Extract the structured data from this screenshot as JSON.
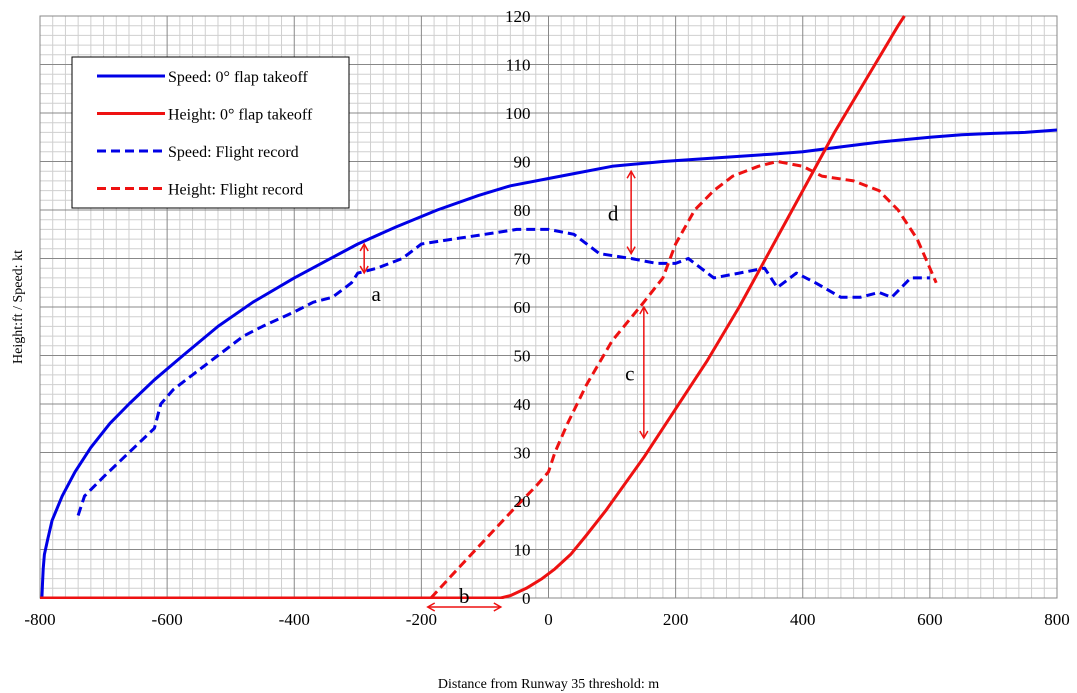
{
  "chart_data": {
    "type": "line",
    "xlabel": "Distance from Runway 35 threshold: m",
    "ylabel": "Height:ft / Speed: kt",
    "xlim": [
      -800,
      800
    ],
    "ylim": [
      0,
      120
    ],
    "x_ticks": [
      -800,
      -600,
      -400,
      -200,
      0,
      200,
      400,
      600,
      800
    ],
    "x_tick_labels": [
      "-800",
      "-600",
      "-400",
      "-200",
      "0",
      "200",
      "400",
      "600",
      "800"
    ],
    "y_ticks": [
      0,
      10,
      20,
      30,
      40,
      50,
      60,
      70,
      80,
      90,
      100,
      110,
      120
    ],
    "y_tick_labels": [
      "0",
      "10",
      "20",
      "30",
      "40",
      "50",
      "60",
      "70",
      "80",
      "90",
      "100",
      "110",
      "120"
    ],
    "grid": true,
    "legend_position": "top-left",
    "series": [
      {
        "name": "Speed: 0° flap takeoff",
        "color": "#0000e6",
        "dash": "solid",
        "points": [
          [
            -797,
            0
          ],
          [
            -796,
            3
          ],
          [
            -795,
            6
          ],
          [
            -793,
            9
          ],
          [
            -788,
            12
          ],
          [
            -781,
            16
          ],
          [
            -765,
            21
          ],
          [
            -745,
            26
          ],
          [
            -720,
            31
          ],
          [
            -690,
            36
          ],
          [
            -660,
            40
          ],
          [
            -620,
            45
          ],
          [
            -575,
            50
          ],
          [
            -520,
            56
          ],
          [
            -465,
            61
          ],
          [
            -400,
            66
          ],
          [
            -350,
            69.5
          ],
          [
            -300,
            73
          ],
          [
            -240,
            76.5
          ],
          [
            -175,
            80
          ],
          [
            -110,
            83
          ],
          [
            -60,
            85
          ],
          [
            0,
            86.5
          ],
          [
            40,
            87.5
          ],
          [
            100,
            89
          ],
          [
            180,
            90
          ],
          [
            270,
            90.8
          ],
          [
            350,
            91.5
          ],
          [
            400,
            92
          ],
          [
            460,
            93
          ],
          [
            520,
            94
          ],
          [
            600,
            95
          ],
          [
            650,
            95.5
          ],
          [
            700,
            95.8
          ],
          [
            750,
            96
          ],
          [
            800,
            96.5
          ]
        ]
      },
      {
        "name": "Height: 0° flap takeoff",
        "color": "#ee1111",
        "dash": "solid",
        "points": [
          [
            -800,
            0
          ],
          [
            -75,
            0
          ],
          [
            -60,
            0.5
          ],
          [
            -35,
            2
          ],
          [
            -10,
            4
          ],
          [
            10,
            6
          ],
          [
            35,
            9
          ],
          [
            60,
            13
          ],
          [
            90,
            18
          ],
          [
            150,
            29
          ],
          [
            200,
            39
          ],
          [
            250,
            49
          ],
          [
            300,
            60
          ],
          [
            350,
            72
          ],
          [
            400,
            84
          ],
          [
            450,
            96
          ],
          [
            500,
            107
          ],
          [
            550,
            118
          ],
          [
            560,
            120
          ]
        ]
      },
      {
        "name": "Speed: Flight record",
        "color": "#0000e6",
        "dash": "dashed",
        "points": [
          [
            -740,
            17
          ],
          [
            -730,
            21
          ],
          [
            -700,
            25
          ],
          [
            -660,
            30
          ],
          [
            -620,
            35
          ],
          [
            -610,
            40
          ],
          [
            -590,
            43
          ],
          [
            -560,
            46
          ],
          [
            -520,
            50
          ],
          [
            -480,
            54
          ],
          [
            -450,
            56
          ],
          [
            -400,
            59
          ],
          [
            -370,
            61
          ],
          [
            -340,
            62
          ],
          [
            -310,
            65
          ],
          [
            -300,
            67
          ],
          [
            -270,
            68
          ],
          [
            -230,
            70
          ],
          [
            -200,
            73
          ],
          [
            -150,
            74
          ],
          [
            -100,
            75
          ],
          [
            -50,
            76
          ],
          [
            0,
            76
          ],
          [
            40,
            75
          ],
          [
            80,
            71
          ],
          [
            130,
            70
          ],
          [
            170,
            69
          ],
          [
            200,
            69
          ],
          [
            220,
            70
          ],
          [
            260,
            66
          ],
          [
            300,
            67
          ],
          [
            340,
            68
          ],
          [
            360,
            64
          ],
          [
            390,
            67
          ],
          [
            420,
            65
          ],
          [
            460,
            62
          ],
          [
            490,
            62
          ],
          [
            520,
            63
          ],
          [
            540,
            62
          ],
          [
            570,
            66
          ],
          [
            600,
            66
          ]
        ]
      },
      {
        "name": "Height: Flight record",
        "color": "#ee1111",
        "dash": "dashed",
        "points": [
          [
            -185,
            0
          ],
          [
            -150,
            5
          ],
          [
            -100,
            12
          ],
          [
            -50,
            19
          ],
          [
            -20,
            23
          ],
          [
            0,
            26
          ],
          [
            10,
            30
          ],
          [
            30,
            36
          ],
          [
            60,
            44
          ],
          [
            100,
            53
          ],
          [
            150,
            61
          ],
          [
            180,
            66
          ],
          [
            200,
            73
          ],
          [
            230,
            80
          ],
          [
            260,
            84
          ],
          [
            290,
            87
          ],
          [
            330,
            89
          ],
          [
            360,
            90
          ],
          [
            400,
            89
          ],
          [
            430,
            87
          ],
          [
            480,
            86
          ],
          [
            520,
            84
          ],
          [
            550,
            80
          ],
          [
            580,
            74
          ],
          [
            600,
            68
          ],
          [
            610,
            65
          ]
        ]
      }
    ],
    "annotations": [
      {
        "label": "a",
        "x": -290,
        "y_from": 67,
        "y_to": 73
      },
      {
        "label": "b",
        "x_from": -190,
        "x_to": -75,
        "y": 0
      },
      {
        "label": "c",
        "x": 150,
        "y_from": 60,
        "y_to": 33
      },
      {
        "label": "d",
        "x": 130,
        "y_from": 88,
        "y_to": 71
      }
    ]
  }
}
